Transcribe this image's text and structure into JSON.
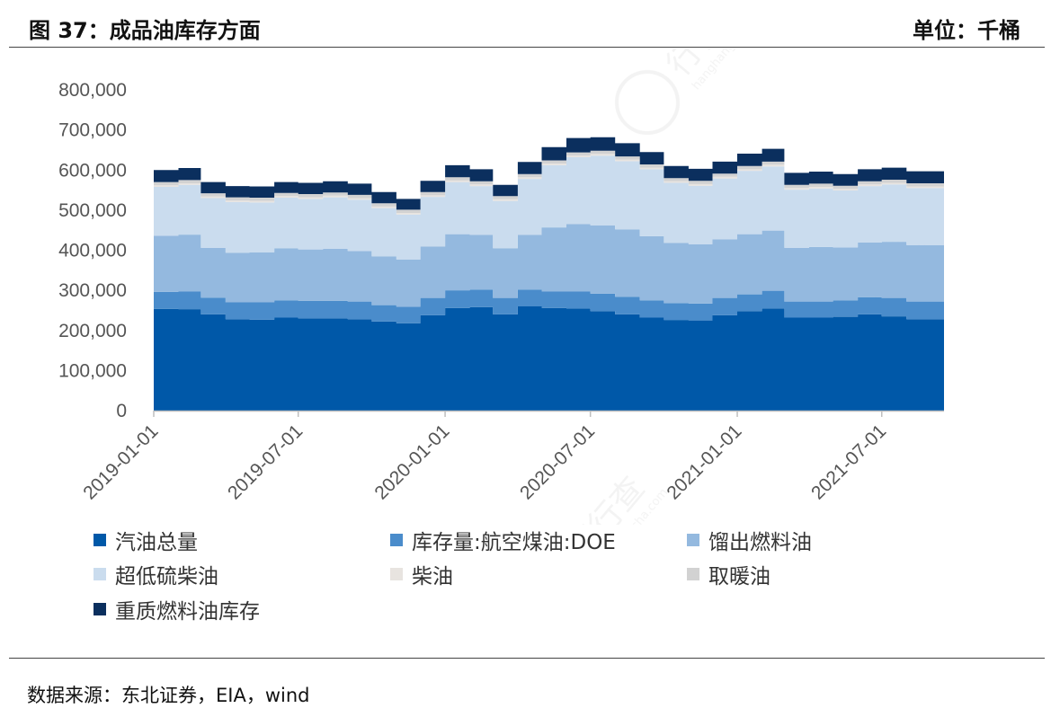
{
  "header": {
    "title": "图 37：成品油库存方面",
    "unit": "单位：千桶"
  },
  "source": "数据来源：东北证券，EIA，wind",
  "chart_data": {
    "type": "area",
    "stacked": true,
    "title": "",
    "xlabel": "",
    "ylabel": "",
    "ylim": [
      0,
      800000
    ],
    "yticks": [
      0,
      100000,
      200000,
      300000,
      400000,
      500000,
      600000,
      700000,
      800000
    ],
    "ytick_labels": [
      "0",
      "100,000",
      "200,000",
      "300,000",
      "400,000",
      "500,000",
      "600,000",
      "700,000",
      "800,000"
    ],
    "xtick_labels": [
      "2019-01-01",
      "2019-07-01",
      "2020-01-01",
      "2020-07-01",
      "2021-01-01",
      "2021-07-01"
    ],
    "xlim": [
      "2019-01-01",
      "2021-09-17"
    ],
    "legend_position": "bottom",
    "x": [
      "2019-01",
      "2019-02",
      "2019-03",
      "2019-04",
      "2019-05",
      "2019-06",
      "2019-07",
      "2019-08",
      "2019-09",
      "2019-10",
      "2019-11",
      "2019-12",
      "2020-01",
      "2020-02",
      "2020-03",
      "2020-04",
      "2020-05",
      "2020-06",
      "2020-07",
      "2020-08",
      "2020-09",
      "2020-10",
      "2020-11",
      "2020-12",
      "2021-01",
      "2021-02",
      "2021-03",
      "2021-04",
      "2021-05",
      "2021-06",
      "2021-07",
      "2021-08",
      "2021-09"
    ],
    "series": [
      {
        "name": "汽油总量",
        "color": "#0058A8",
        "values": [
          254000,
          253000,
          240000,
          228000,
          227000,
          232000,
          230000,
          230000,
          228000,
          222000,
          218000,
          238000,
          256000,
          258000,
          240000,
          260000,
          256000,
          255000,
          248000,
          240000,
          232000,
          226000,
          225000,
          238000,
          248000,
          255000,
          232000,
          232000,
          234000,
          240000,
          235000,
          228000,
          226000
        ]
      },
      {
        "name": "库存量:航空煤油:DOE",
        "color": "#4A8CCB",
        "values": [
          42000,
          44000,
          42000,
          42000,
          43000,
          43000,
          44000,
          44000,
          44000,
          41000,
          41000,
          43000,
          44000,
          44000,
          41000,
          42000,
          41000,
          42000,
          44000,
          44000,
          43000,
          42000,
          42000,
          43000,
          42000,
          44000,
          40000,
          40000,
          41000,
          43000,
          46000,
          44000,
          44000
        ]
      },
      {
        "name": "馏出燃料油",
        "color": "#94B9DF",
        "values": [
          140000,
          142000,
          124000,
          124000,
          125000,
          130000,
          128000,
          130000,
          126000,
          122000,
          118000,
          128000,
          140000,
          136000,
          124000,
          136000,
          160000,
          168000,
          170000,
          168000,
          160000,
          150000,
          148000,
          146000,
          150000,
          150000,
          134000,
          136000,
          132000,
          136000,
          140000,
          141000,
          139000
        ]
      },
      {
        "name": "超低硫柴油",
        "color": "#CADCEE",
        "values": [
          122000,
          124000,
          124000,
          126000,
          124000,
          126000,
          126000,
          128000,
          128000,
          120000,
          112000,
          124000,
          130000,
          122000,
          118000,
          140000,
          155000,
          167000,
          174000,
          170000,
          167000,
          150000,
          146000,
          152000,
          158000,
          160000,
          145000,
          146000,
          142000,
          141000,
          143000,
          142000,
          138000
        ]
      },
      {
        "name": "柴油",
        "color": "#E8E4E0",
        "values": [
          4000,
          4000,
          4000,
          4000,
          4000,
          4000,
          4000,
          4000,
          4000,
          4000,
          4000,
          4000,
          4000,
          4000,
          4000,
          4000,
          4000,
          4000,
          4000,
          4000,
          4000,
          4000,
          4000,
          4000,
          4000,
          4000,
          4000,
          4000,
          4000,
          4000,
          4000,
          4000,
          4000
        ]
      },
      {
        "name": "取暖油",
        "color": "#D2D2D2",
        "values": [
          8000,
          8000,
          8000,
          8000,
          8000,
          8000,
          8000,
          8000,
          8000,
          8000,
          8000,
          8000,
          8000,
          8000,
          8000,
          8000,
          8000,
          8000,
          8000,
          8000,
          8000,
          8000,
          8000,
          8000,
          8000,
          8000,
          8000,
          8000,
          8000,
          8000,
          8000,
          8000,
          8000
        ]
      },
      {
        "name": "重质燃料油库存",
        "color": "#0B2F5E",
        "values": [
          30000,
          30000,
          28000,
          28000,
          28000,
          27000,
          28000,
          28000,
          28000,
          28000,
          27000,
          28000,
          30000,
          30000,
          28000,
          30000,
          33000,
          36000,
          34000,
          33000,
          31000,
          30000,
          30000,
          30000,
          31000,
          32000,
          30000,
          30000,
          29000,
          30000,
          30000,
          30000,
          29000
        ]
      }
    ]
  },
  "watermark": {
    "text": "行行查",
    "subtext": "hanghangcha.com"
  }
}
